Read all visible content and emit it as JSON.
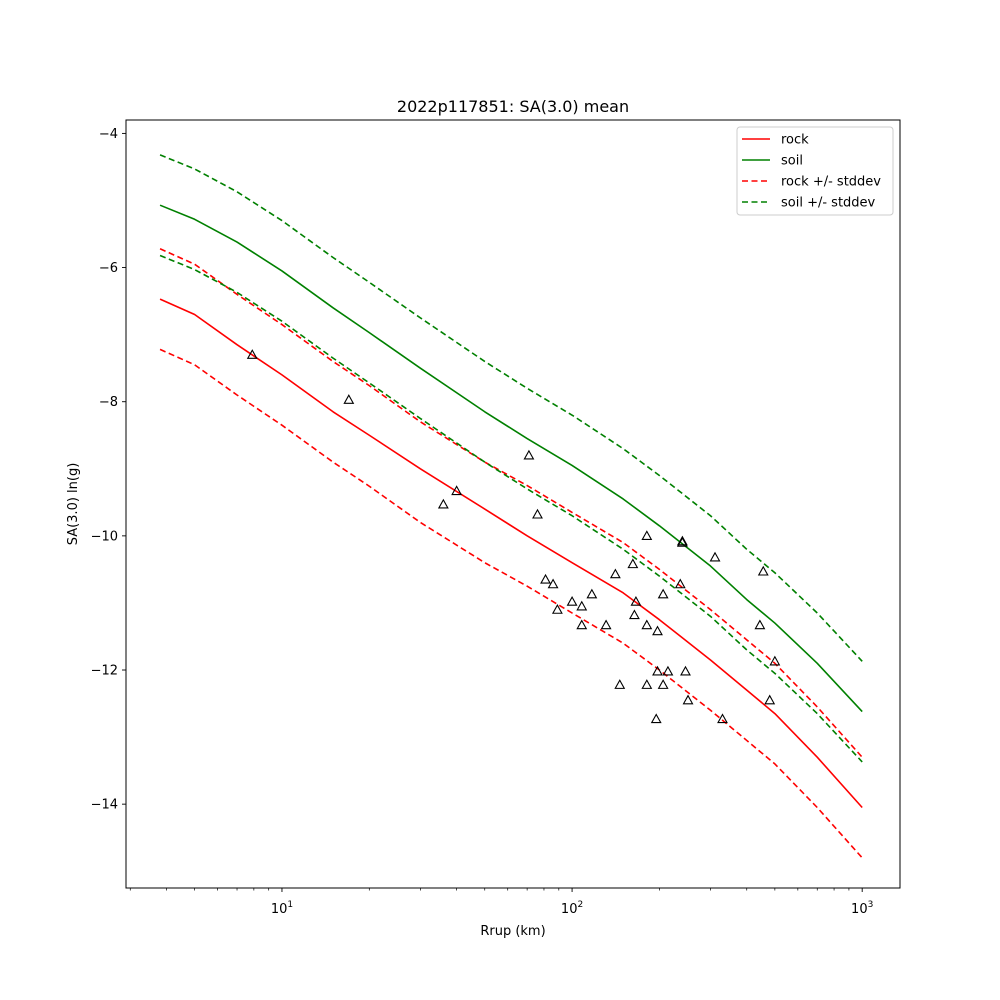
{
  "chart_data": {
    "type": "line",
    "title": "2022p117851: SA(3.0) mean",
    "xlabel": "Rrup (km)",
    "ylabel": "SA(3.0) ln(g)",
    "xscale": "log",
    "xlim": [
      2.9,
      1350
    ],
    "ylim": [
      -15.25,
      -3.8
    ],
    "grid": false,
    "legend_position": "top-right",
    "xticks": [
      {
        "value": 10,
        "base": "10",
        "exp": "1"
      },
      {
        "value": 100,
        "base": "10",
        "exp": "2"
      },
      {
        "value": 1000,
        "base": "10",
        "exp": "3"
      }
    ],
    "yticks": [
      {
        "value": -4,
        "label": "−4"
      },
      {
        "value": -6,
        "label": "−6"
      },
      {
        "value": -8,
        "label": "−8"
      },
      {
        "value": -10,
        "label": "−10"
      },
      {
        "value": -12,
        "label": "−12"
      },
      {
        "value": -14,
        "label": "−14"
      }
    ],
    "x": [
      3.8,
      5,
      7,
      10,
      15,
      20,
      30,
      50,
      70,
      100,
      150,
      200,
      300,
      400,
      500,
      700,
      1000
    ],
    "series": [
      {
        "name": "rock",
        "color": "#ff0000",
        "dash": "solid",
        "values": [
          -6.47,
          -6.7,
          -7.15,
          -7.6,
          -8.15,
          -8.5,
          -9.0,
          -9.6,
          -10.0,
          -10.4,
          -10.85,
          -11.25,
          -11.85,
          -12.3,
          -12.65,
          -13.3,
          -14.05
        ]
      },
      {
        "name": "soil",
        "color": "#008000",
        "dash": "solid",
        "values": [
          -5.07,
          -5.28,
          -5.62,
          -6.05,
          -6.6,
          -6.97,
          -7.5,
          -8.15,
          -8.55,
          -8.95,
          -9.45,
          -9.85,
          -10.45,
          -10.95,
          -11.3,
          -11.9,
          -12.62
        ]
      },
      {
        "name": "rock +/- stddev",
        "color": "#ff0000",
        "dash": "dashed",
        "values": [
          -5.72,
          -5.95,
          -6.4,
          -6.85,
          -7.4,
          -7.76,
          -8.3,
          -8.9,
          -9.25,
          -9.65,
          -10.1,
          -10.5,
          -11.1,
          -11.55,
          -11.9,
          -12.55,
          -13.3
        ]
      },
      {
        "name": "",
        "color": "#ff0000",
        "dash": "dashed",
        "values": [
          -7.22,
          -7.45,
          -7.9,
          -8.35,
          -8.9,
          -9.26,
          -9.8,
          -10.4,
          -10.75,
          -11.15,
          -11.6,
          -12.0,
          -12.6,
          -13.05,
          -13.4,
          -14.05,
          -14.8
        ]
      },
      {
        "name": "soil +/- stddev",
        "color": "#008000",
        "dash": "dashed",
        "values": [
          -4.32,
          -4.53,
          -4.87,
          -5.3,
          -5.85,
          -6.22,
          -6.75,
          -7.4,
          -7.8,
          -8.2,
          -8.7,
          -9.1,
          -9.7,
          -10.2,
          -10.55,
          -11.15,
          -11.87
        ]
      },
      {
        "name": "",
        "color": "#008000",
        "dash": "dashed",
        "values": [
          -5.82,
          -6.03,
          -6.37,
          -6.8,
          -7.35,
          -7.72,
          -8.25,
          -8.9,
          -9.3,
          -9.7,
          -10.2,
          -10.6,
          -11.2,
          -11.7,
          -12.05,
          -12.65,
          -13.37
        ]
      }
    ],
    "observations": {
      "marker": "open-triangle",
      "color": "#000000",
      "points": [
        {
          "x": 7.9,
          "y": -7.3
        },
        {
          "x": 17,
          "y": -7.97
        },
        {
          "x": 36,
          "y": -9.53
        },
        {
          "x": 40,
          "y": -9.33
        },
        {
          "x": 71,
          "y": -8.8
        },
        {
          "x": 76,
          "y": -9.68
        },
        {
          "x": 81,
          "y": -10.65
        },
        {
          "x": 86,
          "y": -10.72
        },
        {
          "x": 89,
          "y": -11.1
        },
        {
          "x": 100,
          "y": -10.98
        },
        {
          "x": 108,
          "y": -11.05
        },
        {
          "x": 108,
          "y": -11.33
        },
        {
          "x": 117,
          "y": -10.87
        },
        {
          "x": 131,
          "y": -11.33
        },
        {
          "x": 141,
          "y": -10.57
        },
        {
          "x": 146,
          "y": -12.22
        },
        {
          "x": 162,
          "y": -10.42
        },
        {
          "x": 164,
          "y": -11.18
        },
        {
          "x": 166,
          "y": -10.98
        },
        {
          "x": 181,
          "y": -10.0
        },
        {
          "x": 181,
          "y": -11.33
        },
        {
          "x": 181,
          "y": -12.22
        },
        {
          "x": 195,
          "y": -12.73
        },
        {
          "x": 197,
          "y": -11.42
        },
        {
          "x": 197,
          "y": -12.02
        },
        {
          "x": 206,
          "y": -10.87
        },
        {
          "x": 206,
          "y": -12.22
        },
        {
          "x": 214,
          "y": -12.02
        },
        {
          "x": 236,
          "y": -10.72
        },
        {
          "x": 240,
          "y": -10.08
        },
        {
          "x": 240,
          "y": -10.1
        },
        {
          "x": 246,
          "y": -12.02
        },
        {
          "x": 251,
          "y": -12.45
        },
        {
          "x": 311,
          "y": -10.32
        },
        {
          "x": 330,
          "y": -12.73
        },
        {
          "x": 444,
          "y": -11.33
        },
        {
          "x": 456,
          "y": -10.53
        },
        {
          "x": 480,
          "y": -12.45
        },
        {
          "x": 500,
          "y": -11.87
        }
      ]
    }
  }
}
